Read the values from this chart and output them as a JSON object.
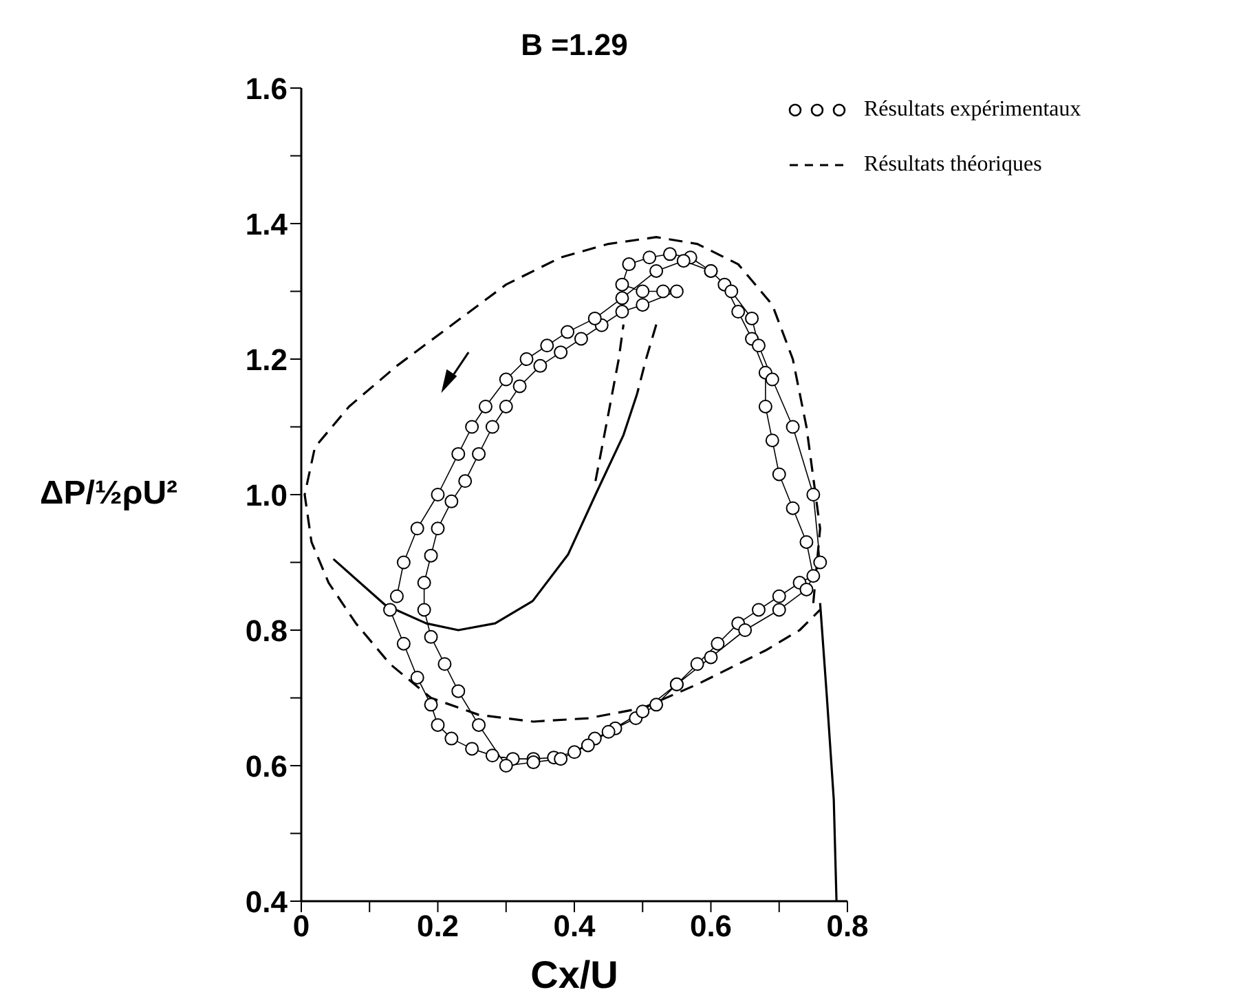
{
  "chart_data": {
    "type": "line",
    "title": "B =1.29",
    "xlabel": "Cx/U",
    "ylabel": "ΔP/½ρU²",
    "xlim": [
      0,
      0.8
    ],
    "ylim": [
      0.4,
      1.6
    ],
    "xticks": [
      0,
      {
        "value": 0.1,
        "label": null
      },
      0.2,
      {
        "value": 0.3,
        "label": null
      },
      0.4,
      {
        "value": 0.5,
        "label": null
      },
      0.6,
      {
        "value": 0.7,
        "label": null
      },
      0.8
    ],
    "yticks": [
      0.4,
      {
        "value": 0.5,
        "label": null
      },
      0.6,
      {
        "value": 0.7,
        "label": null
      },
      0.8,
      {
        "value": 0.9,
        "label": null
      },
      {
        "value": 1.0,
        "label": "1.0"
      },
      {
        "value": 1.1,
        "label": null
      },
      1.2,
      {
        "value": 1.3,
        "label": null
      },
      1.4,
      {
        "value": 1.5,
        "label": null
      },
      1.6
    ],
    "legend": "top right",
    "series": [
      {
        "name": "Résultats expérimentaux",
        "color": "#000000",
        "marker": "circle",
        "line_style": "solid",
        "x": [
          0.13,
          0.15,
          0.17,
          0.19,
          0.2,
          0.22,
          0.25,
          0.28,
          0.31,
          0.34,
          0.37,
          0.4,
          0.43,
          0.46,
          0.49,
          0.52,
          0.55,
          0.58,
          0.61,
          0.64,
          0.67,
          0.7,
          0.73,
          0.75,
          0.74,
          0.72,
          0.7,
          0.69,
          0.68,
          0.68,
          0.66,
          0.64,
          0.62,
          0.6,
          0.57,
          0.54,
          0.51,
          0.48,
          0.47,
          0.5,
          0.53,
          0.55,
          0.5,
          0.47,
          0.44,
          0.41,
          0.38,
          0.35,
          0.32,
          0.3,
          0.28,
          0.26,
          0.24,
          0.22,
          0.2,
          0.19,
          0.18,
          0.18,
          0.19,
          0.21,
          0.23,
          0.26,
          0.3,
          0.34,
          0.38,
          0.42,
          0.45,
          0.5,
          0.55,
          0.6,
          0.65,
          0.7,
          0.74,
          0.76,
          0.75,
          0.72,
          0.69,
          0.67,
          0.66,
          0.63,
          0.6,
          0.56,
          0.52,
          0.47,
          0.43,
          0.39,
          0.36,
          0.33,
          0.3,
          0.27,
          0.25,
          0.23,
          0.2,
          0.17,
          0.15,
          0.14
        ],
        "values": [
          0.83,
          0.78,
          0.73,
          0.69,
          0.66,
          0.64,
          0.625,
          0.615,
          0.61,
          0.61,
          0.612,
          0.62,
          0.64,
          0.655,
          0.67,
          0.69,
          0.72,
          0.75,
          0.78,
          0.81,
          0.83,
          0.85,
          0.87,
          0.88,
          0.93,
          0.98,
          1.03,
          1.08,
          1.13,
          1.18,
          1.23,
          1.27,
          1.31,
          1.33,
          1.35,
          1.355,
          1.35,
          1.34,
          1.31,
          1.3,
          1.3,
          1.3,
          1.28,
          1.27,
          1.25,
          1.23,
          1.21,
          1.19,
          1.16,
          1.13,
          1.1,
          1.06,
          1.02,
          0.99,
          0.95,
          0.91,
          0.87,
          0.83,
          0.79,
          0.75,
          0.71,
          0.66,
          0.6,
          0.605,
          0.61,
          0.63,
          0.65,
          0.68,
          0.72,
          0.76,
          0.8,
          0.83,
          0.86,
          0.9,
          1.0,
          1.1,
          1.17,
          1.22,
          1.26,
          1.3,
          1.33,
          1.345,
          1.33,
          1.29,
          1.26,
          1.24,
          1.22,
          1.2,
          1.17,
          1.13,
          1.1,
          1.06,
          1.0,
          0.95,
          0.9,
          0.85
        ]
      },
      {
        "name": "Résultats théoriques",
        "color": "#000000",
        "marker": "none",
        "line_style": "dashed",
        "x": [
          0.75,
          0.76,
          0.74,
          0.72,
          0.69,
          0.64,
          0.58,
          0.52,
          0.45,
          0.38,
          0.3,
          0.22,
          0.14,
          0.07,
          0.02,
          0.005,
          0.015,
          0.04,
          0.08,
          0.13,
          0.19,
          0.26,
          0.34,
          0.42,
          0.5,
          0.58,
          0.63,
          0.68,
          0.73,
          0.76
        ],
        "values": [
          0.84,
          0.95,
          1.1,
          1.2,
          1.28,
          1.34,
          1.37,
          1.38,
          1.37,
          1.35,
          1.31,
          1.25,
          1.19,
          1.13,
          1.07,
          1.0,
          0.93,
          0.87,
          0.81,
          0.75,
          0.7,
          0.675,
          0.665,
          0.67,
          0.685,
          0.72,
          0.745,
          0.77,
          0.8,
          0.83
        ]
      },
      {
        "color": "#000000",
        "marker": "none",
        "line_style": "dashed",
        "x": [
          0.431,
          0.45,
          0.465,
          0.472
        ],
        "values": [
          1.02,
          1.12,
          1.2,
          1.251
        ]
      },
      {
        "color": "#000000",
        "marker": "none",
        "line_style": "dashed",
        "x": [
          0.52,
          0.505,
          0.492
        ],
        "values": [
          1.251,
          1.2,
          1.149
        ]
      },
      {
        "color": "#000000",
        "marker": "none",
        "line_style": "solid",
        "x": [
          0.492,
          0.472,
          0.431,
          0.391,
          0.339,
          0.284,
          0.23,
          0.183,
          0.123,
          0.047
        ],
        "values": [
          1.149,
          1.088,
          1.0,
          0.912,
          0.843,
          0.81,
          0.8,
          0.81,
          0.837,
          0.905
        ]
      },
      {
        "color": "#000000",
        "marker": "none",
        "line_style": "solid",
        "x": [
          0.76,
          0.77,
          0.78,
          0.784
        ],
        "values": [
          0.84,
          0.7,
          0.55,
          0.4
        ]
      }
    ]
  }
}
